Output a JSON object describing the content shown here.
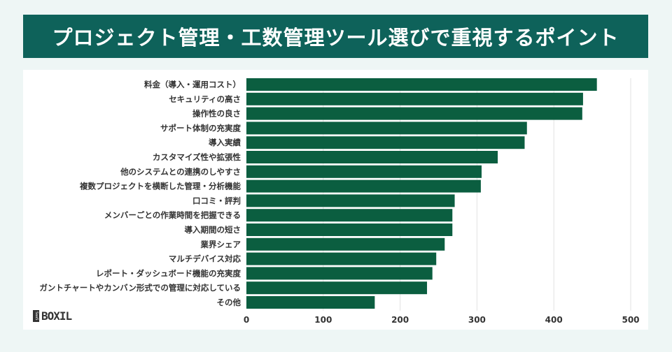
{
  "title": "プロジェクト管理・工数管理ツール選びで重視するポイント",
  "logo": {
    "mark": "SaaS",
    "text": "BOXIL"
  },
  "colors": {
    "banner": "#0e625a",
    "bar": "#0b5e40",
    "background": "#eef6f5",
    "grid": "#e2e2e2"
  },
  "chart_data": {
    "type": "bar",
    "orientation": "horizontal",
    "categories": [
      "料金（導入・運用コスト）",
      "セキュリティの高さ",
      "操作性の良さ",
      "サポート体制の充実度",
      "導入実績",
      "カスタマイズ性や拡張性",
      "他のシステムとの連携のしやすさ",
      "複数プロジェクトを横断した管理・分析機能",
      "口コミ・評判",
      "メンバーごとの作業時間を把握できる",
      "導入期間の短さ",
      "業界シェア",
      "マルチデバイス対応",
      "レポート・ダッシュボード機能の充実度",
      "ガントチャートやカンバン形式での管理に対応している",
      "その他"
    ],
    "values": [
      456,
      438,
      437,
      365,
      362,
      327,
      306,
      305,
      271,
      268,
      268,
      258,
      247,
      242,
      235,
      167
    ],
    "xlim": [
      0,
      500
    ],
    "xticks": [
      "0",
      "100",
      "200",
      "300",
      "400",
      "500"
    ],
    "grid": "vertical"
  }
}
